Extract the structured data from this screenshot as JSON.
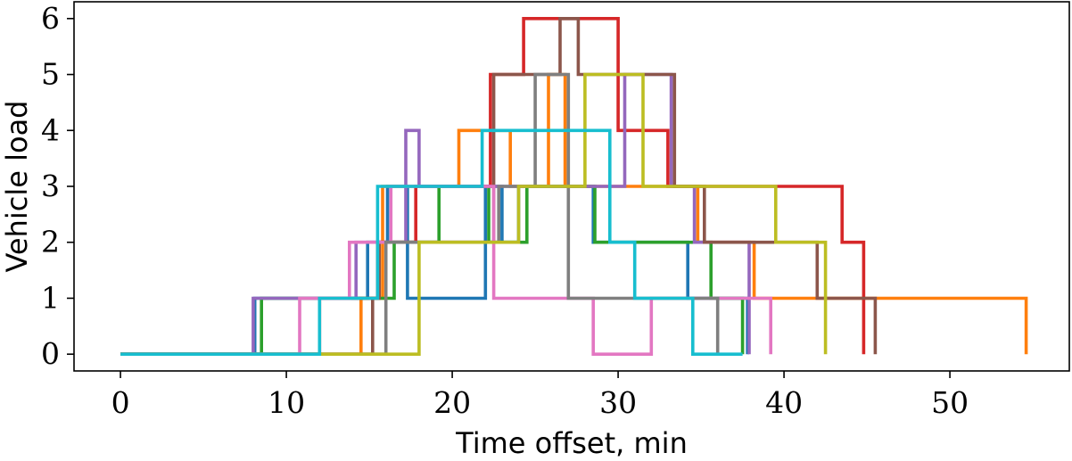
{
  "chart_data": {
    "type": "line",
    "step": "post",
    "xlabel": "Time offset, min",
    "ylabel": "Vehicle load",
    "xlim": [
      -2.8,
      57.2
    ],
    "ylim": [
      -0.3,
      6.3
    ],
    "xticks": [
      0,
      10,
      20,
      30,
      40,
      50
    ],
    "yticks": [
      0,
      1,
      2,
      3,
      4,
      5,
      6
    ],
    "xtick_labels": [
      "0",
      "10",
      "20",
      "30",
      "40",
      "50"
    ],
    "ytick_labels": [
      "0",
      "1",
      "2",
      "3",
      "4",
      "5",
      "6"
    ],
    "grid": false,
    "legend": "none",
    "series": [
      {
        "color": "#1f77b4",
        "x": [
          0,
          8.1,
          14.9,
          16.1,
          17.3,
          22.0,
          23.0,
          24.0,
          28.5,
          34.2,
          37.8
        ],
        "y": [
          0,
          1,
          2,
          3,
          1,
          3,
          2,
          3,
          2,
          1,
          0
        ]
      },
      {
        "color": "#ff7f0e",
        "x": [
          0,
          14.5,
          15.8,
          19.0,
          20.4,
          23.5,
          25.8,
          26.8,
          31.8,
          34.8,
          38.2,
          41.8,
          49.8,
          54.6
        ],
        "y": [
          0,
          1,
          3,
          3,
          4,
          3,
          5,
          3,
          3,
          2,
          1,
          1,
          1,
          0
        ]
      },
      {
        "color": "#2ca02c",
        "x": [
          0,
          8.5,
          11.2,
          16.5,
          19.2,
          22.2,
          24.5,
          27.8,
          28.6,
          35.6,
          37.5
        ],
        "y": [
          0,
          1,
          1,
          2,
          3,
          2,
          3,
          3,
          2,
          1,
          0
        ]
      },
      {
        "color": "#d62728",
        "x": [
          0,
          12.0,
          15.5,
          17.8,
          22.3,
          24.3,
          30.0,
          33.0,
          43.5,
          44.8
        ],
        "y": [
          0,
          1,
          2,
          3,
          5,
          6,
          4,
          3,
          2,
          0
        ]
      },
      {
        "color": "#9467bd",
        "x": [
          0,
          8.0,
          14.2,
          17.2,
          18.0,
          30.4,
          33.2,
          34.6,
          37.9
        ],
        "y": [
          0,
          1,
          2,
          4,
          3,
          5,
          3,
          2,
          0
        ]
      },
      {
        "color": "#8c564b",
        "x": [
          0,
          15.2,
          15.6,
          22.5,
          26.5,
          27.6,
          33.4,
          35.2,
          42.0,
          45.5
        ],
        "y": [
          0,
          1,
          2,
          5,
          6,
          5,
          3,
          2,
          1,
          0
        ]
      },
      {
        "color": "#e377c2",
        "x": [
          0,
          10.8,
          13.8,
          16.3,
          22.5,
          28.5,
          32.0,
          39.2
        ],
        "y": [
          0,
          1,
          2,
          3,
          1,
          0,
          1,
          0
        ]
      },
      {
        "color": "#7f7f7f",
        "x": [
          0,
          16.0,
          22.8,
          25.0,
          27.0,
          35.8,
          36.0
        ],
        "y": [
          0,
          2,
          3,
          5,
          1,
          1,
          0
        ]
      },
      {
        "color": "#bcbd22",
        "x": [
          0,
          14.8,
          18.0,
          24.0,
          28.0,
          31.5,
          39.5,
          42.5
        ],
        "y": [
          0,
          0,
          2,
          3,
          5,
          3,
          2,
          0
        ]
      },
      {
        "color": "#17becf",
        "x": [
          0,
          12.0,
          15.5,
          21.8,
          29.5,
          31.0,
          34.5,
          37.5
        ],
        "y": [
          0,
          1,
          3,
          4,
          2,
          1,
          0,
          0
        ]
      }
    ]
  }
}
